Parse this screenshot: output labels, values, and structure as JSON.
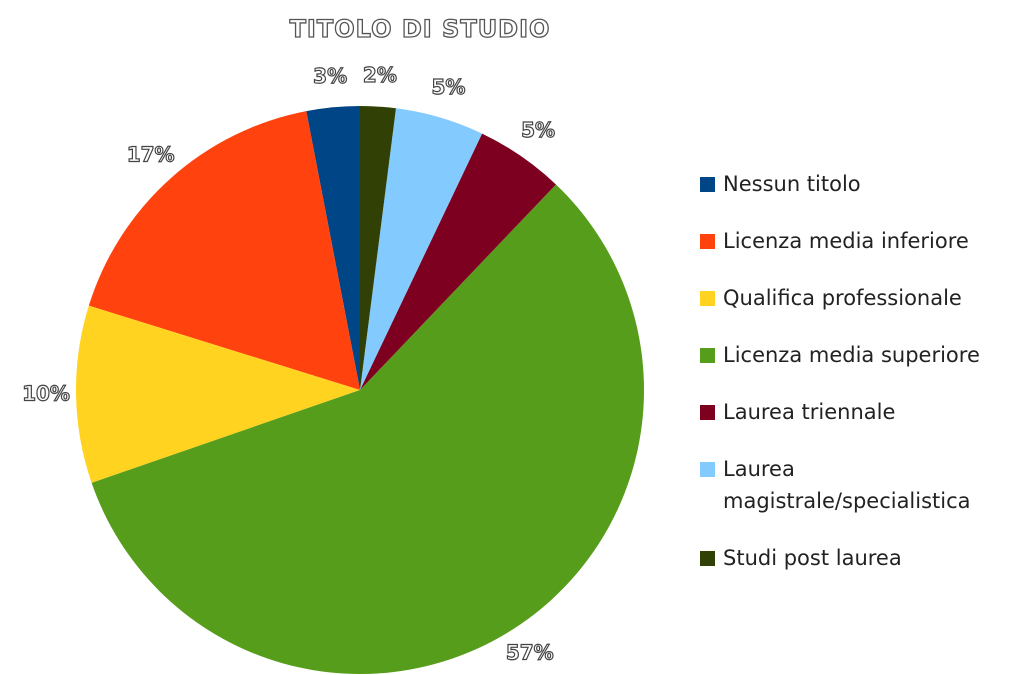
{
  "chart_data": {
    "type": "pie",
    "title": "TITOLO DI STUDIO",
    "categories": [
      "Nessun titolo",
      "Licenza media inferiore",
      "Qualifica professionale",
      "Licenza media superiore",
      "Laurea triennale",
      "Laurea magistrale/specialistica",
      "Studi post laurea"
    ],
    "values": [
      3,
      17,
      10,
      57,
      5,
      5,
      2
    ],
    "value_labels": [
      "3%",
      "17%",
      "10%",
      "57%",
      "5%",
      "5%",
      "2%"
    ],
    "colors": [
      "#004586",
      "#ff420e",
      "#ffd320",
      "#579d1c",
      "#7e0021",
      "#83caff",
      "#314004"
    ],
    "legend": "right"
  }
}
